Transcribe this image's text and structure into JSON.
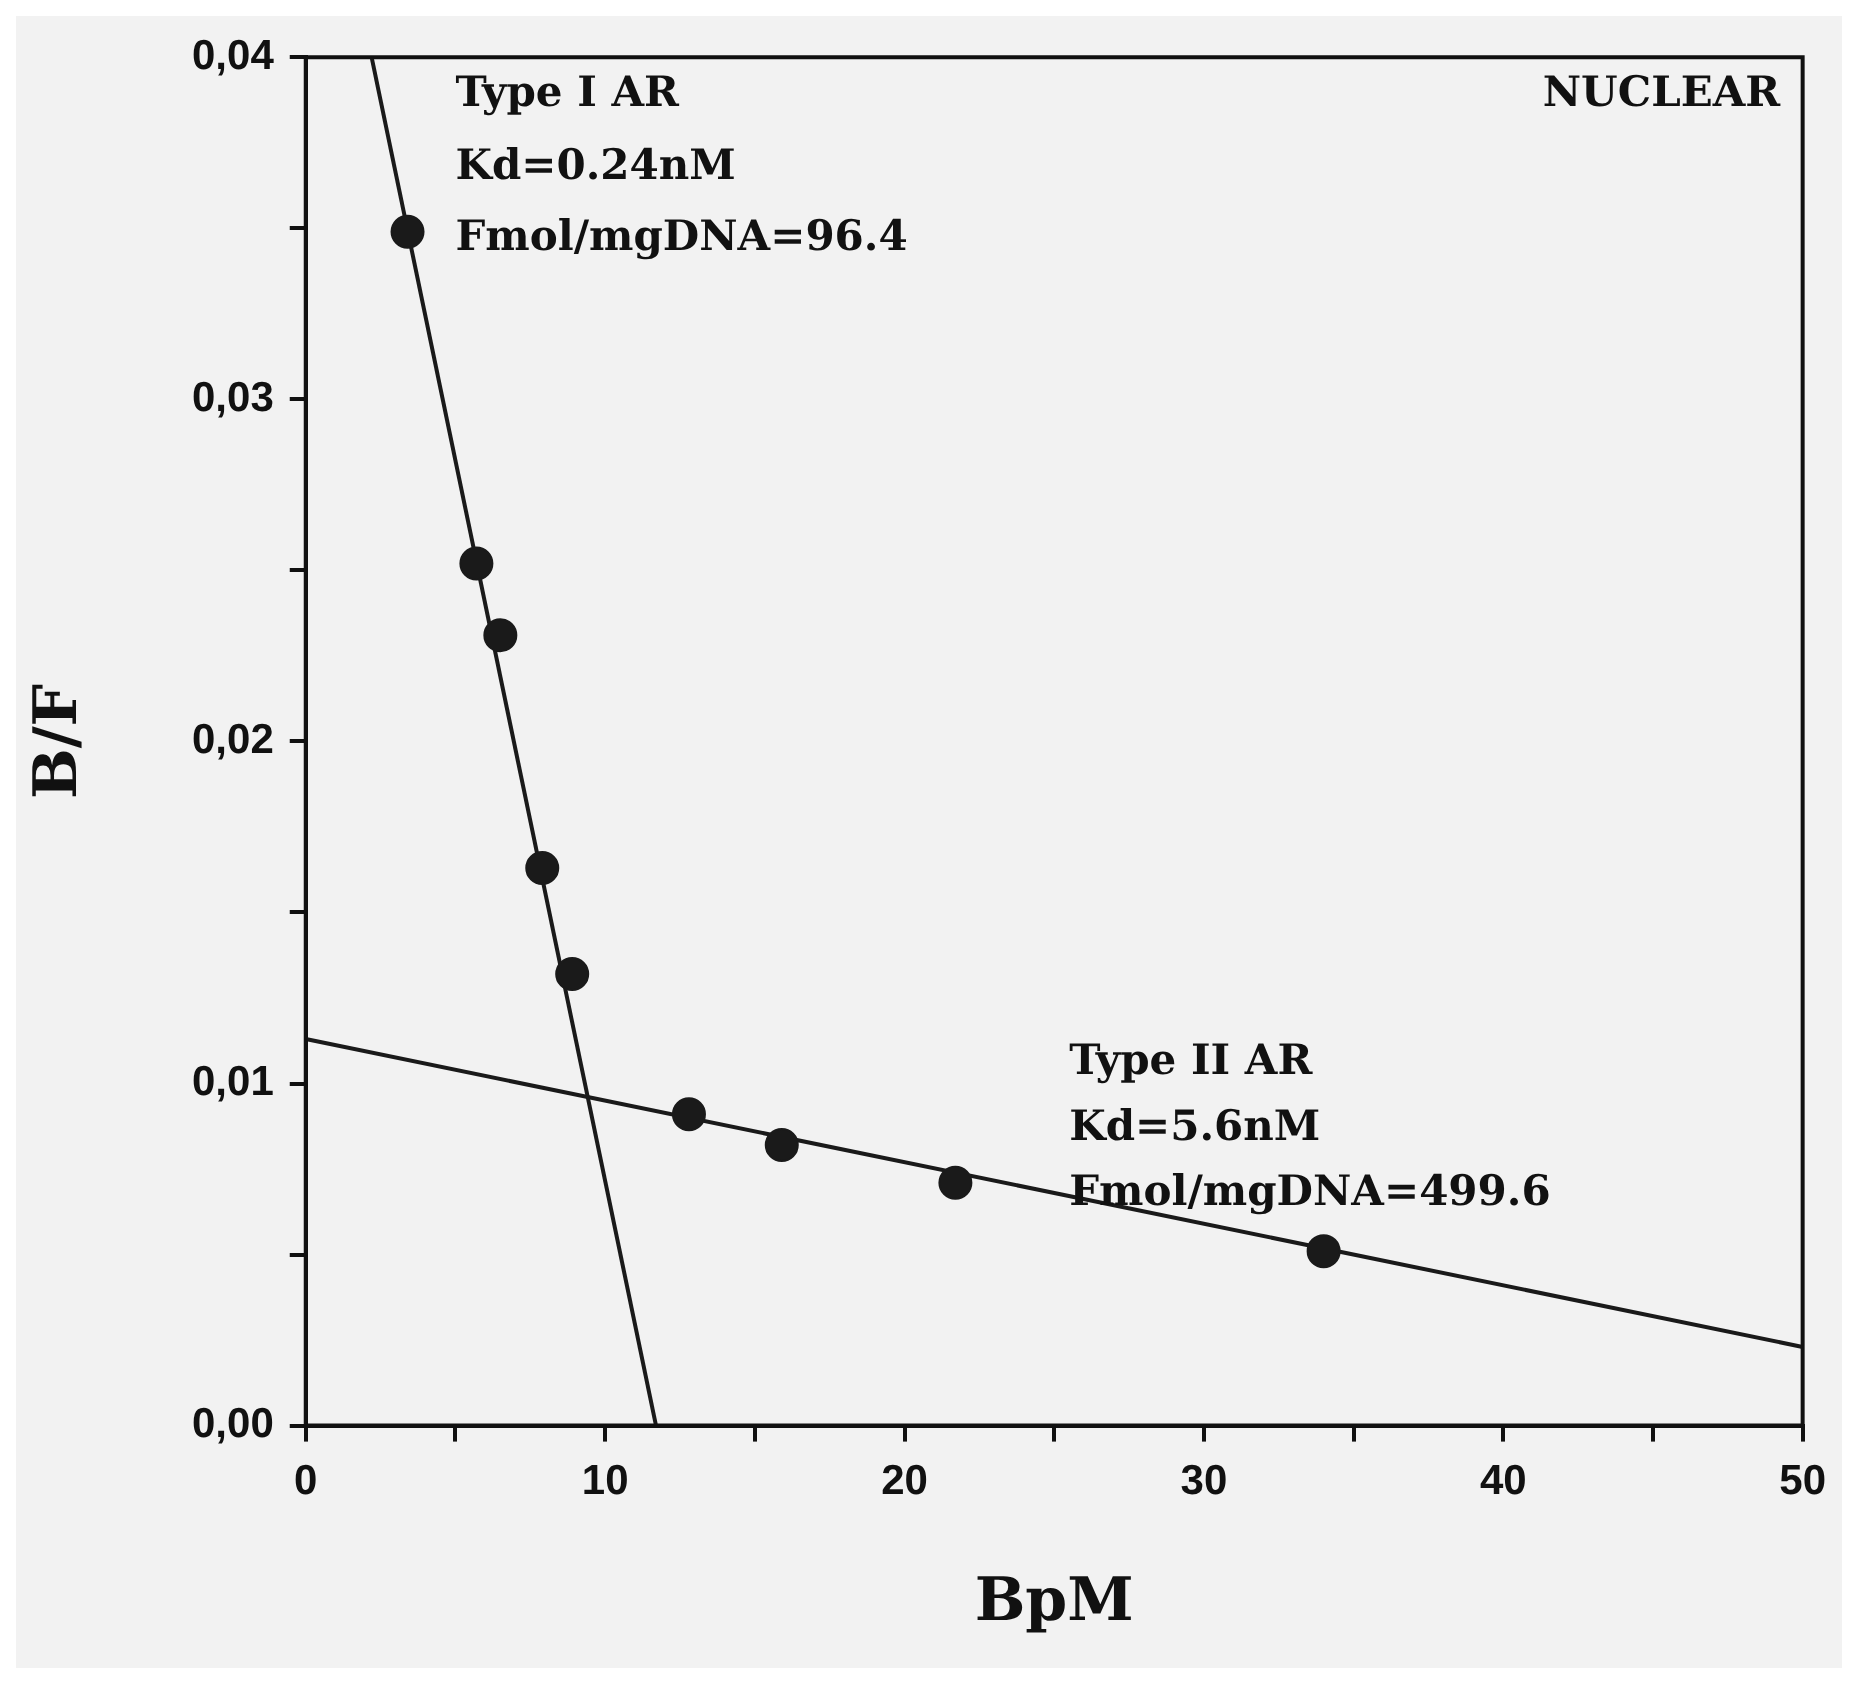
{
  "chart_data": {
    "type": "scatter",
    "xlabel": "BpM",
    "ylabel": "B/F",
    "xlim": [
      0,
      50
    ],
    "ylim": [
      0,
      0.04
    ],
    "xticks": [
      0,
      {
        "value": 5,
        "label": null
      },
      10,
      {
        "value": 15,
        "label": null
      },
      20,
      {
        "value": 25,
        "label": null
      },
      30,
      {
        "value": 35,
        "label": null
      },
      40,
      {
        "value": 45,
        "label": null
      },
      50
    ],
    "yticks": [
      {
        "value": 0,
        "label": "0,00"
      },
      {
        "value": 0.005,
        "label": null
      },
      {
        "value": 0.01,
        "label": "0,01"
      },
      {
        "value": 0.015,
        "label": null
      },
      {
        "value": 0.02,
        "label": "0,02"
      },
      {
        "value": 0.025,
        "label": null
      },
      {
        "value": 0.03,
        "label": "0,03"
      },
      {
        "value": 0.035,
        "label": null
      },
      {
        "value": 0.04,
        "label": "0,04"
      }
    ],
    "grid": false,
    "legend": false,
    "series": [
      {
        "type": "scatter",
        "color": "#1a1a1a",
        "marker": "circle",
        "x": [
          3.4,
          5.7,
          6.5,
          7.9,
          8.9,
          12.8,
          15.9,
          21.7,
          34.0
        ],
        "values": [
          0.0349,
          0.0252,
          0.0231,
          0.0163,
          0.0132,
          0.0091,
          0.0082,
          0.0071,
          0.0051
        ]
      },
      {
        "type": "line",
        "color": "#1a1a1a",
        "marker": "none",
        "line_style": "solid",
        "x": [
          2.2,
          11.7
        ],
        "values": [
          0.04,
          0
        ]
      },
      {
        "type": "line",
        "color": "#1a1a1a",
        "marker": "none",
        "line_style": "solid",
        "x": [
          0,
          50
        ],
        "values": [
          0.0113,
          0.0023
        ]
      }
    ],
    "annotations": [
      "Type I AR",
      "Kd=0.24nM",
      "Fmol/mgDNA=96.4",
      "NUCLEAR",
      "Type II AR",
      "Kd=5.6nM",
      "Fmol/mgDNA=499.6"
    ]
  }
}
